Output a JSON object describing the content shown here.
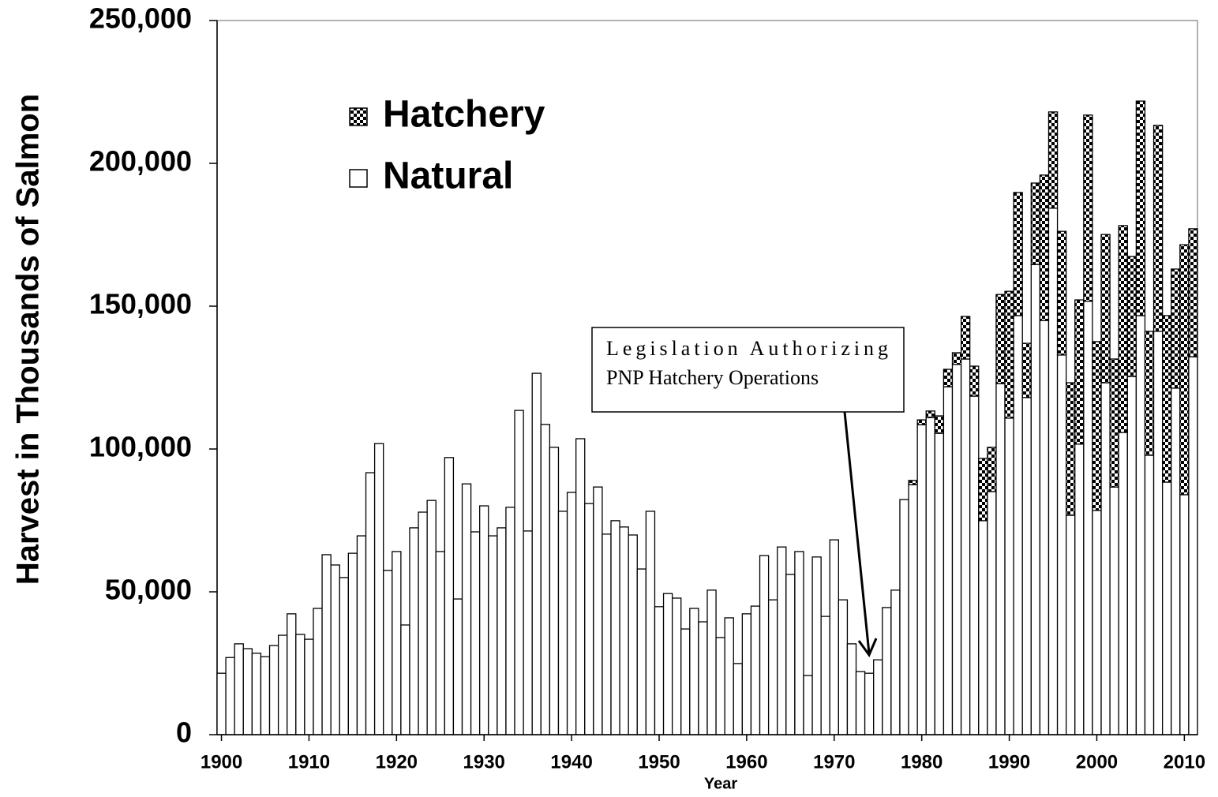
{
  "chart_data": {
    "type": "stacked-bar",
    "y_label": "Harvest in Thousands of Salmon",
    "x_label": "Year",
    "annotation": [
      "Legislation Authorizing",
      "PNP Hatchery Operations"
    ],
    "legend": "upper left",
    "x": [
      1900,
      1901,
      1902,
      1903,
      1904,
      1905,
      1906,
      1907,
      1908,
      1909,
      1910,
      1911,
      1912,
      1913,
      1914,
      1915,
      1916,
      1917,
      1918,
      1919,
      1920,
      1921,
      1922,
      1923,
      1924,
      1925,
      1926,
      1927,
      1928,
      1929,
      1930,
      1931,
      1932,
      1933,
      1934,
      1935,
      1936,
      1937,
      1938,
      1939,
      1940,
      1941,
      1942,
      1943,
      1944,
      1945,
      1946,
      1947,
      1948,
      1949,
      1950,
      1951,
      1952,
      1953,
      1954,
      1955,
      1956,
      1957,
      1958,
      1959,
      1960,
      1961,
      1962,
      1963,
      1964,
      1965,
      1966,
      1967,
      1968,
      1969,
      1970,
      1971,
      1972,
      1973,
      1974,
      1975,
      1976,
      1977,
      1978,
      1979,
      1980,
      1981,
      1982,
      1983,
      1984,
      1985,
      1986,
      1987,
      1988,
      1989,
      1990,
      1991,
      1992,
      1993,
      1994,
      1995,
      1996,
      1997,
      1998,
      1999,
      2000,
      2001,
      2002,
      2003,
      2004,
      2005,
      2006,
      2007,
      2008,
      2009,
      2010,
      2011
    ],
    "series": [
      {
        "name": "Natural",
        "color": "#ffffff",
        "fill": "solid",
        "values": [
          21500,
          27000,
          31800,
          30100,
          28500,
          27300,
          31200,
          34800,
          42300,
          35100,
          33400,
          44200,
          63000,
          59400,
          55000,
          63500,
          69600,
          91700,
          101900,
          57500,
          64100,
          38400,
          72400,
          77900,
          82000,
          64100,
          97000,
          47500,
          87800,
          71000,
          80100,
          69600,
          72400,
          79600,
          113500,
          71300,
          126500,
          108600,
          100600,
          78200,
          84800,
          103600,
          80900,
          86700,
          70200,
          74900,
          72700,
          69900,
          58000,
          78200,
          44800,
          49400,
          47800,
          37000,
          44200,
          39500,
          50600,
          34000,
          40900,
          24900,
          42300,
          45000,
          62700,
          47200,
          65700,
          56100,
          64100,
          20700,
          62200,
          41400,
          68200,
          47200,
          31800,
          22100,
          21500,
          26200,
          44500,
          50600,
          82300,
          87500,
          108500,
          111000,
          105500,
          121800,
          129600,
          131500,
          118500,
          74900,
          85100,
          122900,
          110800,
          146700,
          118000,
          164600,
          145000,
          184300,
          132900,
          76800,
          101700,
          151700,
          78500,
          123200,
          86700,
          105800,
          125400,
          146700,
          97800,
          141200,
          88400,
          121300,
          84000,
          132300
        ]
      },
      {
        "name": "Hatchery",
        "color": "#000000",
        "fill": "checkered",
        "values": [
          0,
          0,
          0,
          0,
          0,
          0,
          0,
          0,
          0,
          0,
          0,
          0,
          0,
          0,
          0,
          0,
          0,
          0,
          0,
          0,
          0,
          0,
          0,
          0,
          0,
          0,
          0,
          0,
          0,
          0,
          0,
          0,
          0,
          0,
          0,
          0,
          0,
          0,
          0,
          0,
          0,
          0,
          0,
          0,
          0,
          0,
          0,
          0,
          0,
          0,
          0,
          0,
          0,
          0,
          0,
          0,
          0,
          0,
          0,
          0,
          0,
          0,
          0,
          0,
          0,
          0,
          0,
          0,
          0,
          0,
          0,
          0,
          0,
          0,
          0,
          0,
          0,
          0,
          0,
          1500,
          1700,
          2300,
          6100,
          6100,
          4100,
          14900,
          10500,
          21800,
          15500,
          31200,
          44400,
          43100,
          19000,
          28500,
          50900,
          33700,
          43300,
          46400,
          50500,
          65200,
          59100,
          51900,
          44800,
          72400,
          42000,
          75100,
          43400,
          72100,
          58300,
          41700,
          87500,
          44800
        ]
      }
    ],
    "xlim": [
      1899.5,
      2011.5
    ],
    "xticks": [
      1900,
      1910,
      1920,
      1930,
      1940,
      1950,
      1960,
      1970,
      1980,
      1990,
      2000,
      2010
    ],
    "ylim": [
      0,
      250000
    ],
    "yticks": [
      0,
      {
        "value": 50000,
        "label": "50,000"
      },
      {
        "value": 100000,
        "label": "100,000"
      },
      {
        "value": 150000,
        "label": "150,000"
      },
      {
        "value": 200000,
        "label": "200,000"
      },
      {
        "value": 250000,
        "label": "250,000"
      }
    ]
  }
}
